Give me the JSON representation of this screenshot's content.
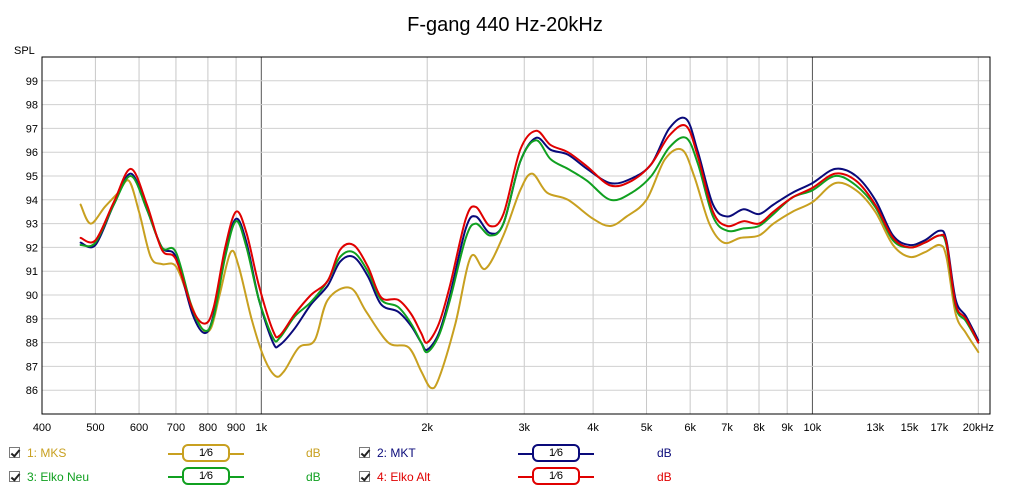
{
  "chart_data": {
    "type": "line",
    "title": "F-gang 440 Hz-20kHz",
    "ylabel": "SPL",
    "xscale": "log",
    "xlim": [
      400,
      21000
    ],
    "ylim": [
      85,
      100
    ],
    "grid": true,
    "x_ticks": [
      {
        "v": 400,
        "label": "400",
        "major": false
      },
      {
        "v": 500,
        "label": "500",
        "major": false
      },
      {
        "v": 600,
        "label": "600",
        "major": false
      },
      {
        "v": 700,
        "label": "700",
        "major": false
      },
      {
        "v": 800,
        "label": "800",
        "major": false
      },
      {
        "v": 900,
        "label": "900",
        "major": false
      },
      {
        "v": 1000,
        "label": "1k",
        "major": true
      },
      {
        "v": 2000,
        "label": "2k",
        "major": false
      },
      {
        "v": 3000,
        "label": "3k",
        "major": false
      },
      {
        "v": 4000,
        "label": "4k",
        "major": false
      },
      {
        "v": 5000,
        "label": "5k",
        "major": false
      },
      {
        "v": 6000,
        "label": "6k",
        "major": false
      },
      {
        "v": 7000,
        "label": "7k",
        "major": false
      },
      {
        "v": 8000,
        "label": "8k",
        "major": false
      },
      {
        "v": 9000,
        "label": "9k",
        "major": false
      },
      {
        "v": 10000,
        "label": "10k",
        "major": true
      },
      {
        "v": 13000,
        "label": "13k",
        "major": false
      },
      {
        "v": 15000,
        "label": "15k",
        "major": false
      },
      {
        "v": 17000,
        "label": "17k",
        "major": false
      },
      {
        "v": 20000,
        "label": "20kHz",
        "major": false
      }
    ],
    "y_ticks": [
      86,
      87,
      88,
      89,
      90,
      91,
      92,
      93,
      94,
      95,
      96,
      97,
      98,
      99
    ],
    "series": [
      {
        "name": "1: MKS",
        "color": "#c8a020",
        "points": [
          [
            470,
            93.8
          ],
          [
            490,
            93.0
          ],
          [
            520,
            93.7
          ],
          [
            550,
            94.3
          ],
          [
            575,
            94.8
          ],
          [
            600,
            93.5
          ],
          [
            630,
            91.6
          ],
          [
            660,
            91.3
          ],
          [
            700,
            91.2
          ],
          [
            740,
            89.8
          ],
          [
            780,
            88.6
          ],
          [
            810,
            88.6
          ],
          [
            840,
            90.0
          ],
          [
            880,
            91.8
          ],
          [
            910,
            91.2
          ],
          [
            960,
            89.0
          ],
          [
            1010,
            87.4
          ],
          [
            1060,
            86.6
          ],
          [
            1100,
            86.8
          ],
          [
            1170,
            87.8
          ],
          [
            1250,
            88.1
          ],
          [
            1320,
            89.8
          ],
          [
            1450,
            90.3
          ],
          [
            1550,
            89.3
          ],
          [
            1700,
            88.0
          ],
          [
            1850,
            87.8
          ],
          [
            1950,
            86.8
          ],
          [
            2030,
            86.1
          ],
          [
            2100,
            86.5
          ],
          [
            2250,
            88.8
          ],
          [
            2400,
            91.6
          ],
          [
            2550,
            91.1
          ],
          [
            2750,
            92.5
          ],
          [
            2950,
            94.4
          ],
          [
            3100,
            95.1
          ],
          [
            3300,
            94.3
          ],
          [
            3600,
            94.0
          ],
          [
            4000,
            93.2
          ],
          [
            4300,
            92.9
          ],
          [
            4600,
            93.3
          ],
          [
            5000,
            94.0
          ],
          [
            5400,
            95.7
          ],
          [
            5800,
            96.1
          ],
          [
            6100,
            95.0
          ],
          [
            6500,
            93.0
          ],
          [
            6900,
            92.2
          ],
          [
            7400,
            92.4
          ],
          [
            8000,
            92.5
          ],
          [
            8500,
            93.0
          ],
          [
            9200,
            93.5
          ],
          [
            10000,
            93.9
          ],
          [
            11000,
            94.7
          ],
          [
            12000,
            94.4
          ],
          [
            13000,
            93.5
          ],
          [
            14000,
            92.1
          ],
          [
            15000,
            91.6
          ],
          [
            16000,
            91.8
          ],
          [
            17000,
            92.1
          ],
          [
            17500,
            91.6
          ],
          [
            18200,
            89.2
          ],
          [
            19000,
            88.4
          ],
          [
            20000,
            87.6
          ]
        ]
      },
      {
        "name": "2: MKT",
        "color": "#0a0a7a",
        "points": [
          [
            470,
            92.2
          ],
          [
            500,
            92.1
          ],
          [
            540,
            93.8
          ],
          [
            580,
            95.1
          ],
          [
            620,
            93.6
          ],
          [
            660,
            92.0
          ],
          [
            700,
            91.6
          ],
          [
            750,
            89.2
          ],
          [
            790,
            88.4
          ],
          [
            820,
            89.2
          ],
          [
            860,
            91.8
          ],
          [
            900,
            93.2
          ],
          [
            940,
            92.2
          ],
          [
            990,
            89.8
          ],
          [
            1050,
            88.0
          ],
          [
            1080,
            87.9
          ],
          [
            1150,
            88.6
          ],
          [
            1230,
            89.6
          ],
          [
            1320,
            90.4
          ],
          [
            1390,
            91.4
          ],
          [
            1470,
            91.6
          ],
          [
            1560,
            90.8
          ],
          [
            1650,
            89.6
          ],
          [
            1770,
            89.3
          ],
          [
            1870,
            88.7
          ],
          [
            1950,
            88.0
          ],
          [
            2000,
            87.7
          ],
          [
            2100,
            88.4
          ],
          [
            2200,
            90.0
          ],
          [
            2350,
            92.8
          ],
          [
            2450,
            93.3
          ],
          [
            2600,
            92.6
          ],
          [
            2750,
            93.0
          ],
          [
            2950,
            95.6
          ],
          [
            3150,
            96.6
          ],
          [
            3350,
            96.1
          ],
          [
            3600,
            95.9
          ],
          [
            3900,
            95.3
          ],
          [
            4300,
            94.7
          ],
          [
            4700,
            94.9
          ],
          [
            5100,
            95.5
          ],
          [
            5500,
            97.0
          ],
          [
            5900,
            97.4
          ],
          [
            6200,
            96.0
          ],
          [
            6600,
            93.8
          ],
          [
            7000,
            93.3
          ],
          [
            7500,
            93.6
          ],
          [
            8000,
            93.4
          ],
          [
            8500,
            93.8
          ],
          [
            9200,
            94.3
          ],
          [
            10000,
            94.7
          ],
          [
            11000,
            95.3
          ],
          [
            12000,
            95.0
          ],
          [
            13000,
            94.0
          ],
          [
            14000,
            92.5
          ],
          [
            15000,
            92.1
          ],
          [
            16000,
            92.3
          ],
          [
            17000,
            92.7
          ],
          [
            17500,
            92.3
          ],
          [
            18200,
            89.8
          ],
          [
            19000,
            89.1
          ],
          [
            20000,
            88.1
          ]
        ]
      },
      {
        "name": "3: Elko Neu",
        "color": "#10a020",
        "points": [
          [
            470,
            92.1
          ],
          [
            500,
            92.2
          ],
          [
            540,
            93.8
          ],
          [
            580,
            95.0
          ],
          [
            620,
            93.6
          ],
          [
            660,
            92.0
          ],
          [
            700,
            91.8
          ],
          [
            750,
            89.4
          ],
          [
            790,
            88.5
          ],
          [
            820,
            89.1
          ],
          [
            860,
            91.6
          ],
          [
            900,
            93.1
          ],
          [
            940,
            92.0
          ],
          [
            990,
            89.8
          ],
          [
            1050,
            88.2
          ],
          [
            1080,
            88.2
          ],
          [
            1150,
            89.1
          ],
          [
            1230,
            89.7
          ],
          [
            1320,
            90.6
          ],
          [
            1390,
            91.6
          ],
          [
            1470,
            91.8
          ],
          [
            1560,
            91.0
          ],
          [
            1650,
            89.8
          ],
          [
            1770,
            89.5
          ],
          [
            1870,
            88.8
          ],
          [
            1950,
            88.0
          ],
          [
            2000,
            87.6
          ],
          [
            2100,
            88.3
          ],
          [
            2200,
            89.8
          ],
          [
            2350,
            92.4
          ],
          [
            2450,
            93.0
          ],
          [
            2600,
            92.5
          ],
          [
            2750,
            93.0
          ],
          [
            2950,
            95.6
          ],
          [
            3150,
            96.5
          ],
          [
            3350,
            95.7
          ],
          [
            3600,
            95.3
          ],
          [
            3900,
            94.8
          ],
          [
            4300,
            94.0
          ],
          [
            4700,
            94.3
          ],
          [
            5100,
            95.0
          ],
          [
            5500,
            96.2
          ],
          [
            5900,
            96.6
          ],
          [
            6200,
            95.5
          ],
          [
            6600,
            93.3
          ],
          [
            7000,
            92.7
          ],
          [
            7500,
            92.8
          ],
          [
            8000,
            92.9
          ],
          [
            8500,
            93.4
          ],
          [
            9200,
            94.1
          ],
          [
            10000,
            94.4
          ],
          [
            11000,
            95.0
          ],
          [
            12000,
            94.6
          ],
          [
            13000,
            93.7
          ],
          [
            14000,
            92.3
          ],
          [
            15000,
            92.0
          ],
          [
            16000,
            92.2
          ],
          [
            17000,
            92.5
          ],
          [
            17500,
            92.1
          ],
          [
            18200,
            89.5
          ],
          [
            19000,
            88.9
          ],
          [
            20000,
            88.0
          ]
        ]
      },
      {
        "name": "4: Elko Alt",
        "color": "#e00000",
        "points": [
          [
            470,
            92.4
          ],
          [
            500,
            92.3
          ],
          [
            540,
            93.9
          ],
          [
            580,
            95.3
          ],
          [
            620,
            93.8
          ],
          [
            660,
            91.9
          ],
          [
            700,
            91.5
          ],
          [
            750,
            89.4
          ],
          [
            790,
            88.8
          ],
          [
            820,
            89.5
          ],
          [
            860,
            92.0
          ],
          [
            900,
            93.5
          ],
          [
            940,
            92.6
          ],
          [
            990,
            90.4
          ],
          [
            1050,
            88.5
          ],
          [
            1080,
            88.3
          ],
          [
            1150,
            89.2
          ],
          [
            1230,
            90.0
          ],
          [
            1320,
            90.6
          ],
          [
            1390,
            91.9
          ],
          [
            1470,
            92.1
          ],
          [
            1560,
            91.2
          ],
          [
            1650,
            89.9
          ],
          [
            1770,
            89.8
          ],
          [
            1870,
            89.2
          ],
          [
            1950,
            88.4
          ],
          [
            2000,
            88.0
          ],
          [
            2100,
            88.8
          ],
          [
            2200,
            90.4
          ],
          [
            2350,
            93.2
          ],
          [
            2450,
            93.7
          ],
          [
            2600,
            92.9
          ],
          [
            2750,
            93.4
          ],
          [
            2950,
            96.1
          ],
          [
            3150,
            96.9
          ],
          [
            3350,
            96.3
          ],
          [
            3600,
            96.0
          ],
          [
            3900,
            95.4
          ],
          [
            4300,
            94.6
          ],
          [
            4700,
            94.8
          ],
          [
            5100,
            95.5
          ],
          [
            5500,
            96.7
          ],
          [
            5900,
            97.1
          ],
          [
            6200,
            95.8
          ],
          [
            6600,
            93.5
          ],
          [
            7000,
            92.9
          ],
          [
            7500,
            93.1
          ],
          [
            8000,
            93.0
          ],
          [
            8500,
            93.5
          ],
          [
            9200,
            94.1
          ],
          [
            10000,
            94.5
          ],
          [
            11000,
            95.1
          ],
          [
            12000,
            94.8
          ],
          [
            13000,
            93.8
          ],
          [
            14000,
            92.4
          ],
          [
            15000,
            92.0
          ],
          [
            16000,
            92.2
          ],
          [
            17000,
            92.5
          ],
          [
            17500,
            92.2
          ],
          [
            18200,
            89.6
          ],
          [
            19000,
            89.0
          ],
          [
            20000,
            88.0
          ]
        ]
      }
    ]
  },
  "legend": {
    "smoothing_label": "1⁄6",
    "items": [
      {
        "name": "1: MKS",
        "color": "#c8a020",
        "unit": "dB"
      },
      {
        "name": "2: MKT",
        "color": "#0a0a7a",
        "unit": "dB"
      },
      {
        "name": "3: Elko Neu",
        "color": "#10a020",
        "unit": "dB"
      },
      {
        "name": "4: Elko Alt",
        "color": "#e00000",
        "unit": "dB"
      }
    ]
  }
}
